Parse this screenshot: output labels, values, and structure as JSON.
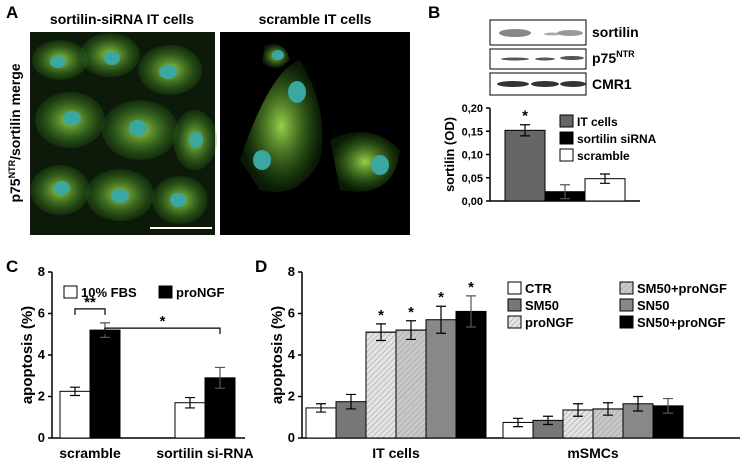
{
  "panels": {
    "A": {
      "label": "A",
      "left_caption": "sortilin-siRNA IT cells",
      "right_caption": "scramble IT cells",
      "side_label_base": "p75",
      "side_label_sup": "NTR",
      "side_label_rest": "/sortilin merge"
    },
    "B": {
      "label": "B",
      "blot_rows": [
        {
          "base": "sortilin"
        },
        {
          "base": "p75",
          "sup": "NTR"
        },
        {
          "base": "CMR1"
        }
      ]
    },
    "C": {
      "label": "C"
    },
    "D": {
      "label": "D"
    }
  },
  "chart_data": [
    {
      "type": "bar",
      "ylabel": "sortilin (OD)",
      "categories": [
        null
      ],
      "series": [
        {
          "name": "IT cells",
          "color": "#666666",
          "values": [
            0.152
          ],
          "errors": [
            0.012
          ]
        },
        {
          "name": "sortilin siRNA",
          "color": "#000000",
          "values": [
            0.02
          ],
          "errors": [
            0.015
          ]
        },
        {
          "name": "scramble",
          "color": "#ffffff",
          "values": [
            0.048
          ],
          "errors": [
            0.01
          ]
        }
      ],
      "ylim": [
        0,
        0.2
      ],
      "yticks": [
        {
          "value": 0,
          "label": "0,00"
        },
        {
          "value": 0.05,
          "label": "0,05"
        },
        {
          "value": 0.1,
          "label": "0,10"
        },
        {
          "value": 0.15,
          "label": "0,15"
        },
        {
          "value": 0.2,
          "label": "0,20"
        }
      ],
      "annotations": [
        {
          "text": "*",
          "series": 0,
          "category": 0
        }
      ]
    },
    {
      "type": "bar",
      "ylabel": "apoptosis (%)",
      "categories": [
        "scramble",
        "sortilin si-RNA"
      ],
      "series": [
        {
          "name": "10% FBS",
          "color": "#ffffff",
          "values": [
            2.25,
            1.7
          ],
          "errors": [
            0.2,
            0.25
          ]
        },
        {
          "name": "proNGF",
          "color": "#000000",
          "values": [
            5.2,
            2.9
          ],
          "errors": [
            0.35,
            0.5
          ]
        }
      ],
      "ylim": [
        0,
        8
      ],
      "yticks": [
        0,
        2,
        4,
        6,
        8
      ],
      "brackets": [
        {
          "text": "**"
        },
        {
          "text": "*"
        }
      ]
    },
    {
      "type": "bar",
      "ylabel": "apoptosis (%)",
      "categories": [
        "IT cells",
        "mSMCs"
      ],
      "series": [
        {
          "name": "CTR",
          "color": "#ffffff",
          "values": [
            1.45,
            0.75
          ],
          "errors": [
            0.2,
            0.2
          ]
        },
        {
          "name": "SM50",
          "color": "#777777",
          "values": [
            1.75,
            0.85
          ],
          "errors": [
            0.35,
            0.2
          ]
        },
        {
          "name": "proNGF",
          "color": "#e4e4e4",
          "hatched": true,
          "values": [
            5.1,
            1.35
          ],
          "errors": [
            0.4,
            0.3
          ]
        },
        {
          "name": "SM50+proNGF",
          "color": "#c8c8c8",
          "hatched": true,
          "values": [
            5.2,
            1.4
          ],
          "errors": [
            0.45,
            0.3
          ]
        },
        {
          "name": "SN50",
          "color": "#888888",
          "values": [
            5.7,
            1.65
          ],
          "errors": [
            0.65,
            0.35
          ]
        },
        {
          "name": "SN50+proNGF",
          "color": "#000000",
          "values": [
            6.1,
            1.55
          ],
          "errors": [
            0.75,
            0.35
          ]
        }
      ],
      "ylim": [
        0,
        8
      ],
      "yticks": [
        0,
        2,
        4,
        6,
        8
      ],
      "annotations": [
        {
          "text": "*",
          "series": 2,
          "category": 0
        },
        {
          "text": "*",
          "series": 3,
          "category": 0
        },
        {
          "text": "*",
          "series": 4,
          "category": 0
        },
        {
          "text": "*",
          "series": 5,
          "category": 0
        }
      ]
    }
  ]
}
